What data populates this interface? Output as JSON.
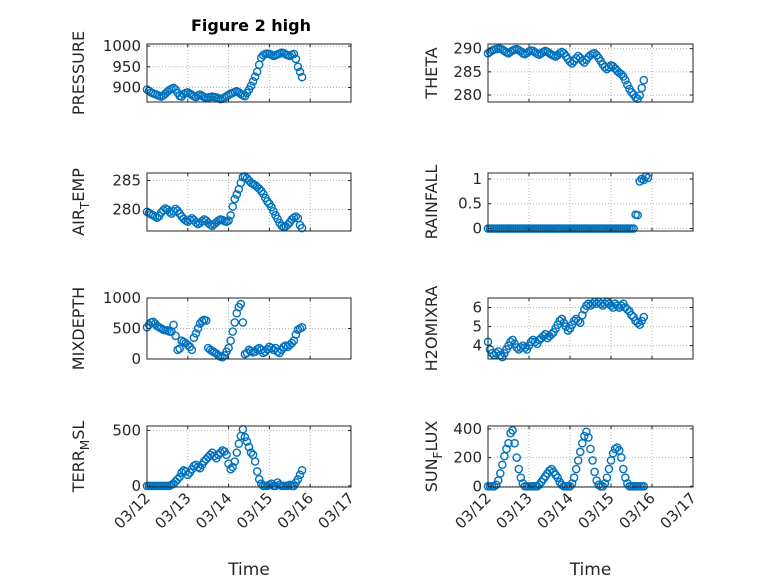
{
  "figure": {
    "title": "Figure 2 high",
    "x_axis_label": "Time",
    "x_tick_labels": [
      "03/12",
      "03/13",
      "03/14",
      "03/15",
      "03/16",
      "03/17"
    ],
    "marker_color": "#0072bd"
  },
  "chart_data": [
    {
      "type": "scatter",
      "ylabel": "PRESSURE",
      "yticks": [
        "900",
        "950",
        "1000"
      ],
      "ylim": [
        865,
        1005
      ],
      "xlim": [
        0,
        5
      ],
      "grid": true,
      "x": [
        0.0,
        0.05,
        0.1,
        0.15,
        0.2,
        0.25,
        0.3,
        0.35,
        0.4,
        0.45,
        0.5,
        0.55,
        0.6,
        0.65,
        0.7,
        0.75,
        0.8,
        0.85,
        0.9,
        0.95,
        1.0,
        1.05,
        1.1,
        1.15,
        1.2,
        1.25,
        1.3,
        1.35,
        1.4,
        1.45,
        1.5,
        1.55,
        1.6,
        1.65,
        1.7,
        1.75,
        1.8,
        1.85,
        1.9,
        1.95,
        2.0,
        2.05,
        2.1,
        2.15,
        2.2,
        2.25,
        2.3,
        2.35,
        2.4,
        2.45,
        2.5,
        2.55,
        2.6,
        2.65,
        2.7,
        2.75,
        2.8,
        2.85,
        2.9,
        2.95,
        3.0,
        3.05,
        3.1,
        3.15,
        3.2,
        3.25,
        3.3,
        3.35,
        3.4,
        3.45,
        3.5,
        3.55,
        3.6,
        3.65,
        3.7,
        3.75,
        3.8
      ],
      "y": [
        895,
        892,
        888,
        886,
        884,
        882,
        880,
        878,
        881,
        885,
        890,
        894,
        897,
        899,
        895,
        887,
        880,
        878,
        884,
        887,
        888,
        885,
        882,
        879,
        877,
        881,
        883,
        880,
        877,
        875,
        876,
        877,
        878,
        877,
        876,
        874,
        872,
        873,
        876,
        879,
        882,
        885,
        887,
        889,
        891,
        888,
        884,
        881,
        879,
        887,
        895,
        904,
        915,
        926,
        938,
        955,
        972,
        978,
        981,
        982,
        981,
        979,
        976,
        978,
        980,
        982,
        984,
        983,
        980,
        978,
        976,
        979,
        981,
        969,
        950,
        938,
        925
      ]
    },
    {
      "type": "scatter",
      "ylabel": "THETA",
      "yticks": [
        "280",
        "285",
        "290"
      ],
      "ylim": [
        278.5,
        291
      ],
      "xlim": [
        0,
        5
      ],
      "grid": true,
      "x": [
        0.0,
        0.05,
        0.1,
        0.15,
        0.2,
        0.25,
        0.3,
        0.35,
        0.4,
        0.45,
        0.5,
        0.55,
        0.6,
        0.65,
        0.7,
        0.75,
        0.8,
        0.85,
        0.9,
        0.95,
        1.0,
        1.05,
        1.1,
        1.15,
        1.2,
        1.25,
        1.3,
        1.35,
        1.4,
        1.45,
        1.5,
        1.55,
        1.6,
        1.65,
        1.7,
        1.75,
        1.8,
        1.85,
        1.9,
        1.95,
        2.0,
        2.05,
        2.1,
        2.15,
        2.2,
        2.25,
        2.3,
        2.35,
        2.4,
        2.45,
        2.5,
        2.55,
        2.6,
        2.65,
        2.7,
        2.75,
        2.8,
        2.85,
        2.9,
        2.95,
        3.0,
        3.05,
        3.1,
        3.15,
        3.2,
        3.25,
        3.3,
        3.35,
        3.4,
        3.45,
        3.5,
        3.55,
        3.6,
        3.65,
        3.7,
        3.75,
        3.8
      ],
      "y": [
        289.0,
        289.3,
        289.6,
        289.8,
        289.9,
        290.0,
        290.0,
        289.8,
        289.5,
        289.2,
        289.0,
        289.3,
        289.6,
        289.8,
        289.9,
        289.7,
        289.4,
        289.0,
        288.8,
        289.1,
        289.4,
        289.6,
        289.5,
        289.2,
        288.9,
        288.7,
        289.0,
        289.3,
        289.5,
        289.3,
        289.0,
        288.7,
        288.5,
        288.3,
        288.6,
        289.0,
        289.3,
        289.0,
        288.4,
        287.8,
        287.2,
        286.8,
        287.3,
        287.9,
        288.4,
        288.0,
        287.4,
        287.0,
        287.6,
        288.2,
        288.6,
        288.9,
        289.0,
        288.6,
        288.0,
        287.3,
        286.6,
        286.0,
        285.6,
        286.0,
        286.4,
        286.2,
        285.7,
        285.2,
        284.8,
        284.5,
        284.0,
        283.2,
        282.2,
        281.3,
        280.6,
        280.1,
        279.5,
        279.2,
        279.9,
        281.5,
        283.2
      ]
    },
    {
      "type": "scatter",
      "ylabel": "AIR_TEMP",
      "ylabel_main": "AIR",
      "ylabel_sub": "T",
      "ylabel_rest": "EMP",
      "yticks": [
        "280",
        "285"
      ],
      "ylim": [
        276.3,
        286.3
      ],
      "xlim": [
        0,
        5
      ],
      "grid": true,
      "x": [
        0.0,
        0.05,
        0.1,
        0.15,
        0.2,
        0.25,
        0.3,
        0.35,
        0.4,
        0.45,
        0.5,
        0.55,
        0.6,
        0.65,
        0.7,
        0.75,
        0.8,
        0.85,
        0.9,
        0.95,
        1.0,
        1.05,
        1.1,
        1.15,
        1.2,
        1.25,
        1.3,
        1.35,
        1.4,
        1.45,
        1.5,
        1.55,
        1.6,
        1.65,
        1.7,
        1.75,
        1.8,
        1.85,
        1.9,
        1.95,
        2.0,
        2.05,
        2.1,
        2.15,
        2.2,
        2.25,
        2.3,
        2.35,
        2.4,
        2.45,
        2.5,
        2.55,
        2.6,
        2.65,
        2.7,
        2.75,
        2.8,
        2.85,
        2.9,
        2.95,
        3.0,
        3.05,
        3.1,
        3.15,
        3.2,
        3.25,
        3.3,
        3.35,
        3.4,
        3.45,
        3.5,
        3.55,
        3.6,
        3.65,
        3.7,
        3.75,
        3.8
      ],
      "y": [
        279.6,
        279.4,
        279.2,
        279.0,
        278.8,
        278.6,
        278.9,
        279.5,
        279.9,
        280.2,
        280.0,
        279.6,
        279.3,
        279.7,
        280.1,
        279.8,
        279.3,
        278.8,
        278.4,
        278.1,
        277.9,
        278.2,
        278.5,
        278.2,
        277.8,
        277.5,
        277.7,
        278.0,
        278.3,
        278.1,
        277.7,
        277.4,
        277.2,
        277.5,
        277.8,
        278.1,
        278.3,
        278.2,
        278.0,
        277.9,
        278.1,
        279.0,
        280.5,
        281.8,
        282.6,
        283.5,
        284.6,
        285.6,
        285.7,
        285.4,
        285.0,
        284.6,
        284.4,
        284.2,
        283.9,
        283.6,
        283.2,
        282.7,
        282.0,
        281.4,
        281.0,
        280.4,
        279.7,
        279.0,
        278.4,
        277.7,
        277.2,
        277.0,
        277.1,
        277.4,
        277.8,
        278.3,
        278.6,
        278.8,
        278.5,
        277.3,
        276.8
      ]
    },
    {
      "type": "scatter",
      "ylabel": "RAINFALL",
      "yticks": [
        "0",
        "0.5",
        "1"
      ],
      "ylim": [
        -0.05,
        1.12
      ],
      "xlim": [
        0,
        5
      ],
      "grid": true,
      "x": [
        0.0,
        0.05,
        0.1,
        0.15,
        0.2,
        0.25,
        0.3,
        0.35,
        0.4,
        0.45,
        0.5,
        0.55,
        0.6,
        0.65,
        0.7,
        0.75,
        0.8,
        0.85,
        0.9,
        0.95,
        1.0,
        1.05,
        1.1,
        1.15,
        1.2,
        1.25,
        1.3,
        1.35,
        1.4,
        1.45,
        1.5,
        1.55,
        1.6,
        1.65,
        1.7,
        1.75,
        1.8,
        1.85,
        1.9,
        1.95,
        2.0,
        2.05,
        2.1,
        2.15,
        2.2,
        2.25,
        2.3,
        2.35,
        2.4,
        2.45,
        2.5,
        2.55,
        2.6,
        2.65,
        2.7,
        2.75,
        2.8,
        2.85,
        2.9,
        2.95,
        3.0,
        3.05,
        3.1,
        3.15,
        3.2,
        3.25,
        3.3,
        3.35,
        3.4,
        3.45,
        3.5,
        3.55,
        3.6,
        3.65,
        3.7,
        3.75,
        3.8,
        3.85,
        3.9
      ],
      "y": [
        0,
        0,
        0,
        0,
        0,
        0,
        0,
        0,
        0,
        0,
        0,
        0,
        0,
        0,
        0,
        0,
        0,
        0,
        0,
        0,
        0,
        0,
        0,
        0,
        0,
        0,
        0,
        0,
        0,
        0,
        0,
        0,
        0,
        0,
        0,
        0,
        0,
        0,
        0,
        0,
        0,
        0,
        0,
        0,
        0,
        0,
        0,
        0,
        0,
        0,
        0,
        0,
        0,
        0,
        0,
        0,
        0,
        0,
        0,
        0,
        0,
        0,
        0,
        0,
        0,
        0,
        0,
        0,
        0,
        0,
        0,
        0,
        0.28,
        0.27,
        0.95,
        1.0,
        0.98,
        1.05,
        1.02
      ]
    },
    {
      "type": "scatter",
      "ylabel": "MIXDEPTH",
      "yticks": [
        "0",
        "500",
        "1000"
      ],
      "ylim": [
        0,
        1000
      ],
      "xlim": [
        0,
        5
      ],
      "grid": true,
      "x": [
        0.0,
        0.05,
        0.1,
        0.15,
        0.2,
        0.25,
        0.3,
        0.35,
        0.4,
        0.45,
        0.5,
        0.55,
        0.6,
        0.65,
        0.7,
        0.75,
        0.8,
        0.85,
        0.9,
        0.95,
        1.0,
        1.05,
        1.1,
        1.15,
        1.2,
        1.25,
        1.3,
        1.35,
        1.4,
        1.45,
        1.5,
        1.55,
        1.6,
        1.65,
        1.7,
        1.75,
        1.8,
        1.85,
        1.9,
        1.95,
        2.0,
        2.05,
        2.1,
        2.15,
        2.2,
        2.25,
        2.3,
        2.35,
        2.4,
        2.45,
        2.5,
        2.55,
        2.6,
        2.65,
        2.7,
        2.75,
        2.8,
        2.85,
        2.9,
        2.95,
        3.0,
        3.05,
        3.1,
        3.15,
        3.2,
        3.25,
        3.3,
        3.35,
        3.4,
        3.45,
        3.5,
        3.55,
        3.6,
        3.65,
        3.7,
        3.75,
        3.8
      ],
      "y": [
        520,
        560,
        600,
        610,
        580,
        540,
        520,
        500,
        480,
        470,
        470,
        450,
        450,
        560,
        380,
        150,
        170,
        300,
        280,
        260,
        230,
        200,
        150,
        350,
        420,
        500,
        580,
        620,
        640,
        630,
        180,
        150,
        130,
        110,
        90,
        60,
        40,
        30,
        60,
        120,
        180,
        300,
        450,
        600,
        750,
        850,
        900,
        600,
        80,
        100,
        150,
        130,
        110,
        120,
        160,
        180,
        150,
        100,
        120,
        160,
        200,
        180,
        150,
        180,
        120,
        100,
        150,
        200,
        220,
        200,
        230,
        260,
        300,
        400,
        480,
        500,
        520
      ]
    },
    {
      "type": "scatter",
      "ylabel": "H2OMIXRA",
      "yticks": [
        "4",
        "5",
        "6"
      ],
      "ylim": [
        3.3,
        6.5
      ],
      "xlim": [
        0,
        5
      ],
      "grid": true,
      "x": [
        0.0,
        0.05,
        0.1,
        0.15,
        0.2,
        0.25,
        0.3,
        0.35,
        0.4,
        0.45,
        0.5,
        0.55,
        0.6,
        0.65,
        0.7,
        0.75,
        0.8,
        0.85,
        0.9,
        0.95,
        1.0,
        1.05,
        1.1,
        1.15,
        1.2,
        1.25,
        1.3,
        1.35,
        1.4,
        1.45,
        1.5,
        1.55,
        1.6,
        1.65,
        1.7,
        1.75,
        1.8,
        1.85,
        1.9,
        1.95,
        2.0,
        2.05,
        2.1,
        2.15,
        2.2,
        2.25,
        2.3,
        2.35,
        2.4,
        2.45,
        2.5,
        2.55,
        2.6,
        2.65,
        2.7,
        2.75,
        2.8,
        2.85,
        2.9,
        2.95,
        3.0,
        3.05,
        3.1,
        3.15,
        3.2,
        3.25,
        3.3,
        3.35,
        3.4,
        3.45,
        3.5,
        3.55,
        3.6,
        3.65,
        3.7,
        3.75,
        3.8
      ],
      "y": [
        4.2,
        3.8,
        3.6,
        3.5,
        3.6,
        3.7,
        3.5,
        3.4,
        3.6,
        3.8,
        4.0,
        4.2,
        4.3,
        4.1,
        3.9,
        3.8,
        3.9,
        4.0,
        3.9,
        3.8,
        4.0,
        4.2,
        4.3,
        4.2,
        4.1,
        4.3,
        4.4,
        4.5,
        4.6,
        4.4,
        4.5,
        4.6,
        4.7,
        4.9,
        5.1,
        5.3,
        5.4,
        5.2,
        5.0,
        4.8,
        4.9,
        5.1,
        5.3,
        5.4,
        5.3,
        5.2,
        5.6,
        5.9,
        6.1,
        6.2,
        6.1,
        6.2,
        6.3,
        6.2,
        6.3,
        6.2,
        6.1,
        6.2,
        6.3,
        6.2,
        6.1,
        6.0,
        6.2,
        6.1,
        6.0,
        6.1,
        6.2,
        6.0,
        5.9,
        5.8,
        5.6,
        5.5,
        5.3,
        5.2,
        5.1,
        5.3,
        5.5
      ]
    },
    {
      "type": "scatter",
      "ylabel": "TERR_MSL",
      "ylabel_main": "TERR",
      "ylabel_sub": "M",
      "ylabel_rest": "SL",
      "yticks": [
        "0",
        "500"
      ],
      "ylim": [
        -10,
        540
      ],
      "xlim": [
        0,
        5
      ],
      "grid": true,
      "x": [
        0.0,
        0.05,
        0.1,
        0.15,
        0.2,
        0.25,
        0.3,
        0.35,
        0.4,
        0.45,
        0.5,
        0.55,
        0.6,
        0.65,
        0.7,
        0.75,
        0.8,
        0.85,
        0.9,
        0.95,
        1.0,
        1.05,
        1.1,
        1.15,
        1.2,
        1.25,
        1.3,
        1.35,
        1.4,
        1.45,
        1.5,
        1.55,
        1.6,
        1.65,
        1.7,
        1.75,
        1.8,
        1.85,
        1.9,
        1.95,
        2.0,
        2.05,
        2.1,
        2.15,
        2.2,
        2.25,
        2.3,
        2.35,
        2.4,
        2.45,
        2.5,
        2.55,
        2.6,
        2.65,
        2.7,
        2.75,
        2.8,
        2.85,
        2.9,
        2.95,
        3.0,
        3.05,
        3.1,
        3.15,
        3.2,
        3.25,
        3.3,
        3.35,
        3.4,
        3.45,
        3.5,
        3.55,
        3.6,
        3.65,
        3.7,
        3.75,
        3.8
      ],
      "y": [
        0,
        0,
        0,
        0,
        0,
        0,
        0,
        0,
        0,
        0,
        0,
        0,
        10,
        20,
        40,
        60,
        80,
        120,
        140,
        130,
        100,
        120,
        150,
        180,
        190,
        170,
        160,
        190,
        220,
        240,
        260,
        280,
        300,
        270,
        250,
        280,
        300,
        320,
        310,
        280,
        200,
        150,
        170,
        220,
        300,
        380,
        450,
        510,
        440,
        400,
        350,
        300,
        280,
        220,
        130,
        60,
        20,
        0,
        0,
        0,
        10,
        20,
        0,
        0,
        30,
        10,
        0,
        0,
        0,
        0,
        10,
        0,
        0,
        30,
        60,
        100,
        140
      ]
    },
    {
      "type": "scatter",
      "ylabel": "SUN_FLUX",
      "ylabel_main": "SUN",
      "ylabel_sub": "F",
      "ylabel_rest": "LUX",
      "yticks": [
        "0",
        "200",
        "400"
      ],
      "ylim": [
        -5,
        420
      ],
      "xlim": [
        0,
        5
      ],
      "grid": true,
      "x": [
        0.0,
        0.05,
        0.1,
        0.15,
        0.2,
        0.25,
        0.3,
        0.35,
        0.4,
        0.45,
        0.5,
        0.55,
        0.6,
        0.65,
        0.7,
        0.75,
        0.8,
        0.85,
        0.9,
        0.95,
        1.0,
        1.05,
        1.1,
        1.15,
        1.2,
        1.25,
        1.3,
        1.35,
        1.4,
        1.45,
        1.5,
        1.55,
        1.6,
        1.65,
        1.7,
        1.75,
        1.8,
        1.85,
        1.9,
        1.95,
        2.0,
        2.05,
        2.1,
        2.15,
        2.2,
        2.25,
        2.3,
        2.35,
        2.4,
        2.45,
        2.5,
        2.55,
        2.6,
        2.65,
        2.7,
        2.75,
        2.8,
        2.85,
        2.9,
        2.95,
        3.0,
        3.05,
        3.1,
        3.15,
        3.2,
        3.25,
        3.3,
        3.35,
        3.4,
        3.45,
        3.5,
        3.55,
        3.6,
        3.65,
        3.7,
        3.75,
        3.8
      ],
      "y": [
        0,
        0,
        0,
        0,
        10,
        40,
        90,
        150,
        210,
        260,
        300,
        370,
        390,
        300,
        200,
        120,
        60,
        20,
        0,
        0,
        0,
        0,
        0,
        0,
        0,
        10,
        30,
        50,
        70,
        90,
        110,
        120,
        100,
        80,
        60,
        30,
        10,
        0,
        0,
        0,
        0,
        20,
        60,
        120,
        180,
        240,
        300,
        350,
        380,
        340,
        260,
        180,
        100,
        40,
        10,
        0,
        0,
        20,
        60,
        120,
        180,
        230,
        260,
        270,
        250,
        200,
        120,
        60,
        20,
        0,
        0,
        0,
        0,
        0,
        0,
        0,
        0
      ]
    }
  ]
}
